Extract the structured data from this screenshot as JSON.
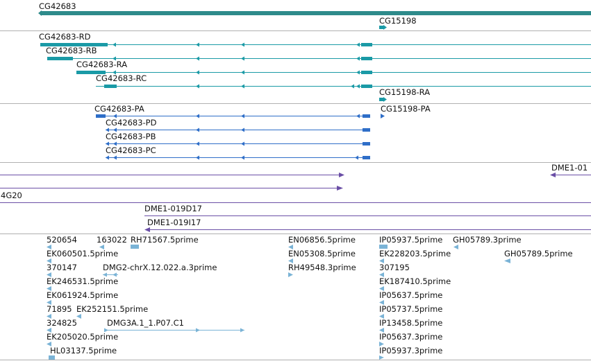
{
  "colors": {
    "gene": "#2e8b8b",
    "transcript_teal": "#1a9aa6",
    "protein_blue": "#2e6ec8",
    "clone_purple": "#6a4ea6",
    "est_light": "#7ab3d6",
    "divider": "#b0b0b0"
  },
  "genes": {
    "gene1": "CG42683",
    "gene2": "CG15198"
  },
  "transcripts": [
    "CG42683-RD",
    "CG42683-RB",
    "CG42683-RA",
    "CG42683-RC",
    "CG15198-RA"
  ],
  "proteins": [
    "CG42683-PA",
    "CG15198-PA",
    "CG42683-PD",
    "CG42683-PB",
    "CG42683-PC"
  ],
  "clones": {
    "c1": "DME1-01",
    "c2": "4G20",
    "c3": "DME1-019D17",
    "c4": "DME1-019I17"
  },
  "ests": [
    "520654",
    "163022",
    "RH71567.5prime",
    "EN06856.5prime",
    "IP05937.5prime",
    "GH05789.3prime",
    "EK060501.5prime",
    "EN05308.5prime",
    "EK228203.5prime",
    "GH05789.5prime",
    "370147",
    "DMG2-chrX.12.022.a.3prime",
    "RH49548.3prime",
    "307195",
    "EK246531.5prime",
    "EK187410.5prime",
    "EK061924.5prime",
    "IP05637.5prime",
    "71895",
    "EK252151.5prime",
    "IP05737.5prime",
    "324825",
    "DMG3A.1_1.P07.C1",
    "IP13458.5prime",
    "EK205020.5prime",
    "IP05637.3prime",
    "HL03137.5prime",
    "IP05937.3prime"
  ]
}
